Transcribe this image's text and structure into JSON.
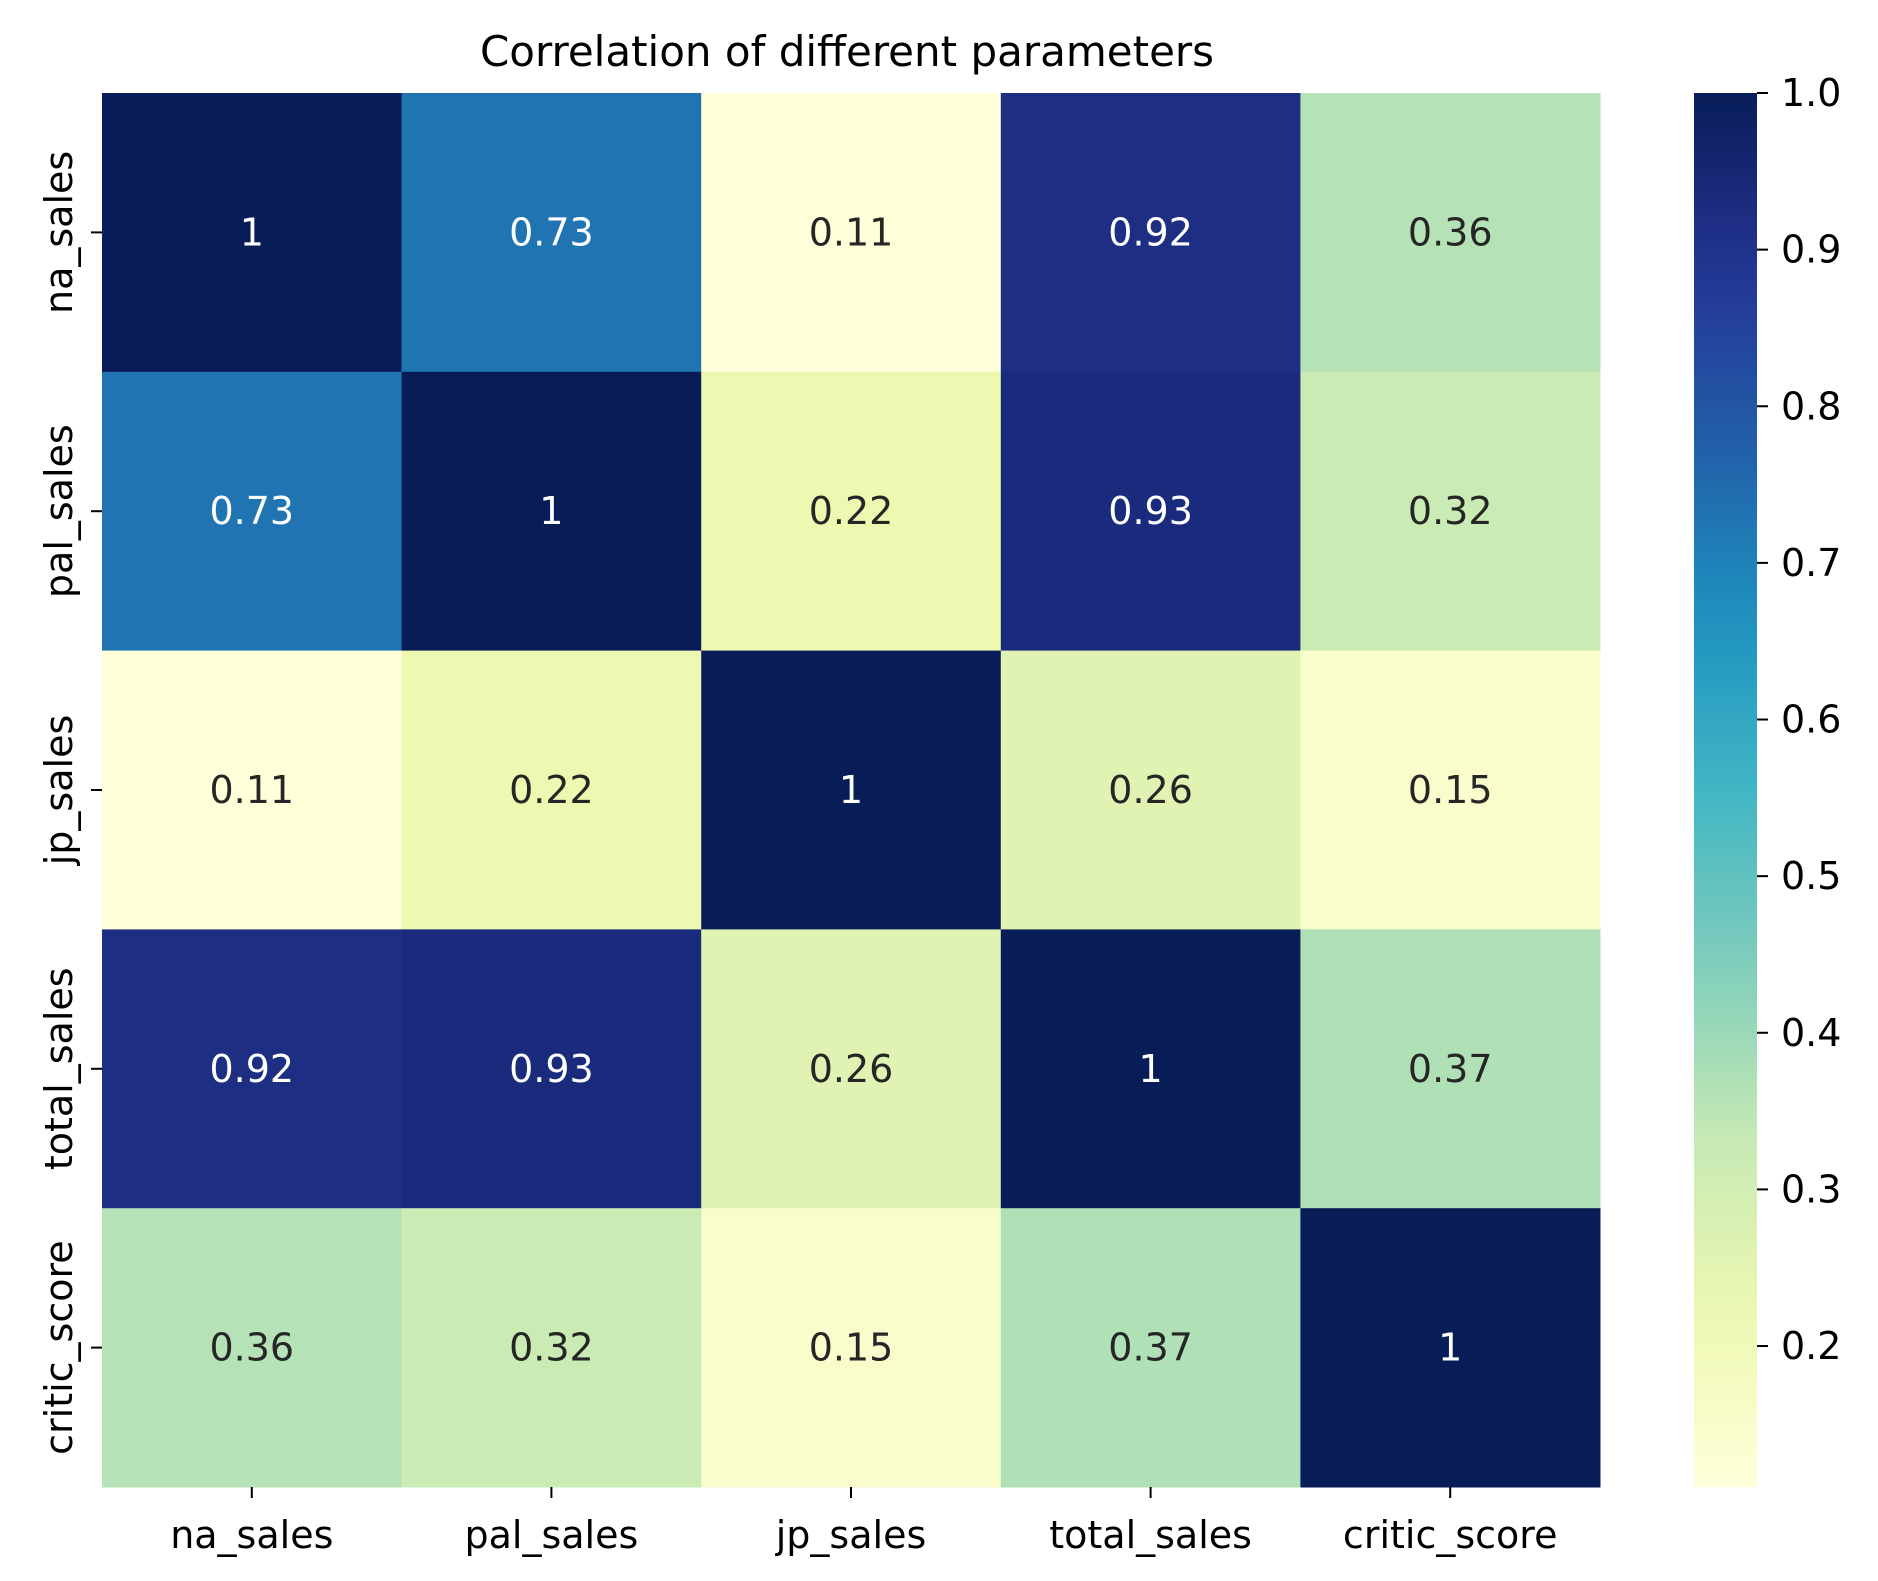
{
  "chart_data": {
    "type": "heatmap",
    "title": "Correlation of different parameters",
    "xlabel": "",
    "ylabel": "",
    "x_categories": [
      "na_sales",
      "pal_sales",
      "jp_sales",
      "total_sales",
      "critic_score"
    ],
    "y_categories": [
      "na_sales",
      "pal_sales",
      "jp_sales",
      "total_sales",
      "critic_score"
    ],
    "values": [
      [
        1,
        0.73,
        0.11,
        0.92,
        0.36
      ],
      [
        0.73,
        1,
        0.22,
        0.93,
        0.32
      ],
      [
        0.11,
        0.22,
        1,
        0.26,
        0.15
      ],
      [
        0.92,
        0.93,
        0.26,
        1,
        0.37
      ],
      [
        0.36,
        0.32,
        0.15,
        0.37,
        1
      ]
    ],
    "cell_labels": [
      [
        "1",
        "0.73",
        "0.11",
        "0.92",
        "0.36"
      ],
      [
        "0.73",
        "1",
        "0.22",
        "0.93",
        "0.32"
      ],
      [
        "0.11",
        "0.22",
        "1",
        "0.26",
        "0.15"
      ],
      [
        "0.92",
        "0.93",
        "0.26",
        "1",
        "0.37"
      ],
      [
        "0.36",
        "0.32",
        "0.15",
        "0.37",
        "1"
      ]
    ],
    "colormap": "YlGnBu",
    "color_range": [
      0.11,
      1.0
    ],
    "colorbar": {
      "ticks": [
        0.2,
        0.3,
        0.4,
        0.5,
        0.6,
        0.7,
        0.8,
        0.9,
        1.0
      ],
      "tick_labels": [
        "0.2",
        "0.3",
        "0.4",
        "0.5",
        "0.6",
        "0.7",
        "0.8",
        "0.9",
        "1.0"
      ],
      "placement": "right"
    },
    "grid": false,
    "annotations": true
  }
}
